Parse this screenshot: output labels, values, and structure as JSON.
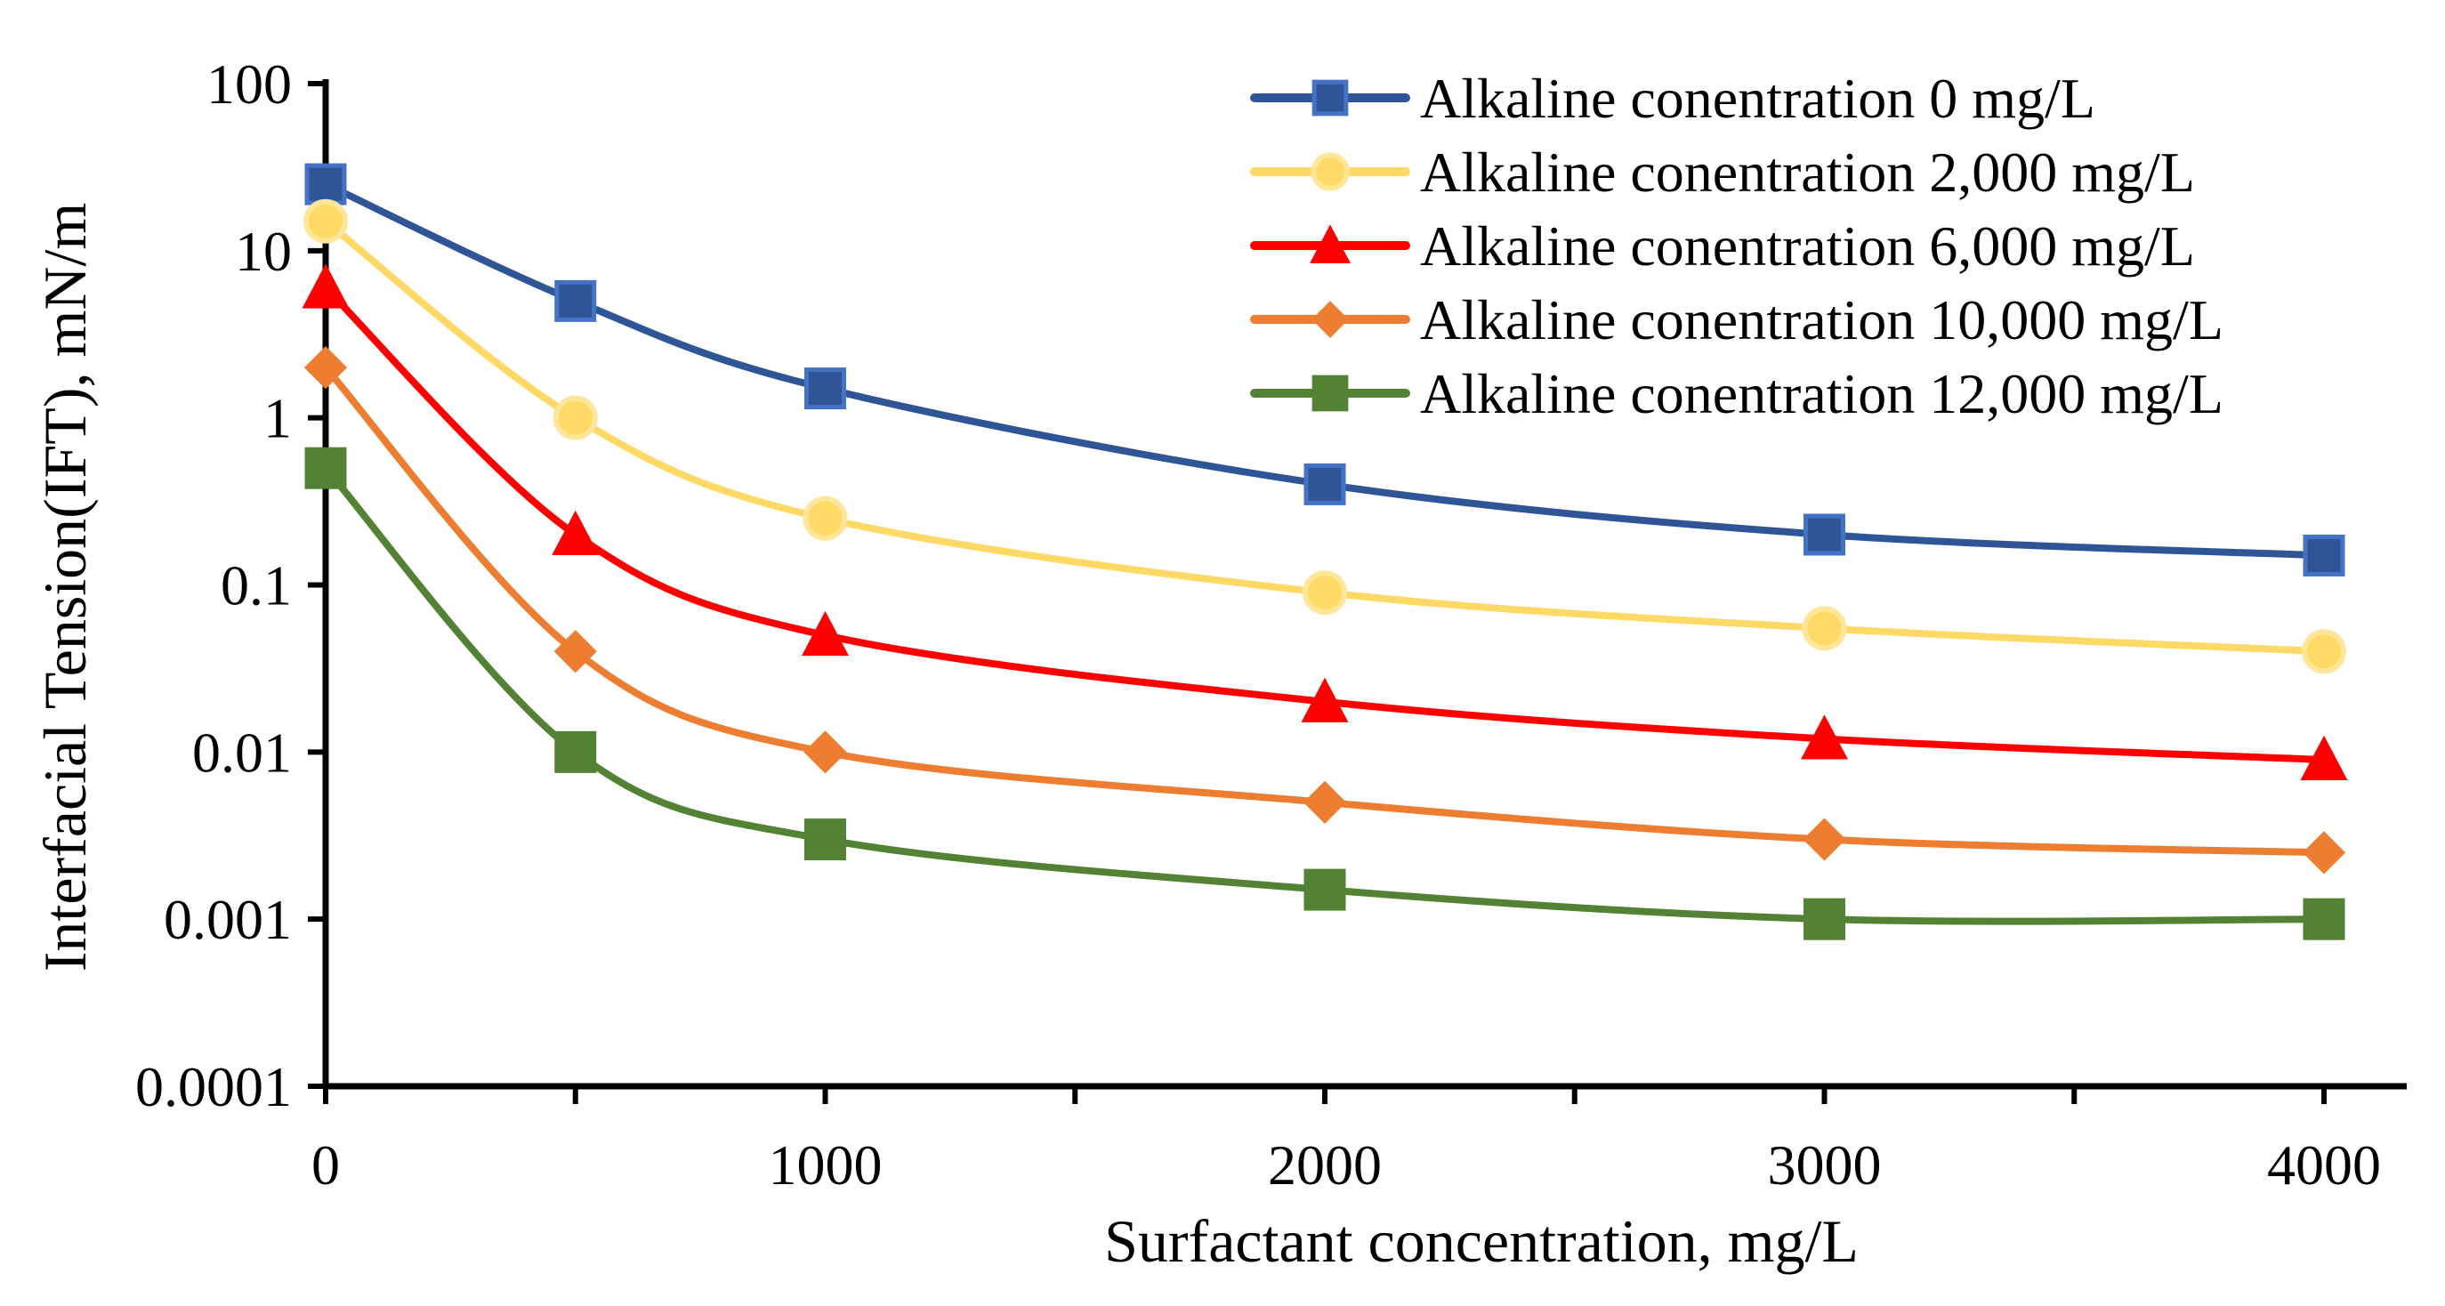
{
  "chart_data": {
    "type": "line",
    "title": "",
    "xlabel": "Surfactant concentration, mg/L",
    "ylabel": "Interfacial Tension(IFT), mN/m",
    "yscale": "log",
    "xlim": [
      0,
      4000
    ],
    "ylim": [
      0.0001,
      100
    ],
    "x_ticks": [
      "0",
      "1000",
      "2000",
      "3000",
      "4000"
    ],
    "y_ticks": [
      "0.0001",
      "0.001",
      "0.01",
      "0.1",
      "1",
      "10",
      "100"
    ],
    "legend_position": "top-right",
    "grid": false,
    "x": [
      0,
      500,
      1000,
      2000,
      3000,
      4000
    ],
    "series": [
      {
        "name": "Alkaline conentration 0 mg/L",
        "color": "#2F5597",
        "marker": "square",
        "values": [
          25,
          5,
          1.5,
          0.4,
          0.2,
          0.15
        ]
      },
      {
        "name": "Alkaline conentration 2,000 mg/L",
        "color": "#FFD966",
        "marker": "circle",
        "values": [
          15,
          1,
          0.25,
          0.09,
          0.055,
          0.04
        ]
      },
      {
        "name": "Alkaline conentration 6,000 mg/L",
        "color": "#FF0000",
        "marker": "triangle",
        "values": [
          6,
          0.2,
          0.05,
          0.02,
          0.012,
          0.009
        ]
      },
      {
        "name": "Alkaline conentration 10,000 mg/L",
        "color": "#ED7D31",
        "marker": "diamond",
        "values": [
          2,
          0.04,
          0.01,
          0.005,
          0.003,
          0.0025
        ]
      },
      {
        "name": "Alkaline conentration 12,000 mg/L",
        "color": "#548235",
        "marker": "square-solid",
        "values": [
          0.5,
          0.01,
          0.003,
          0.0015,
          0.001,
          0.001
        ]
      }
    ]
  }
}
